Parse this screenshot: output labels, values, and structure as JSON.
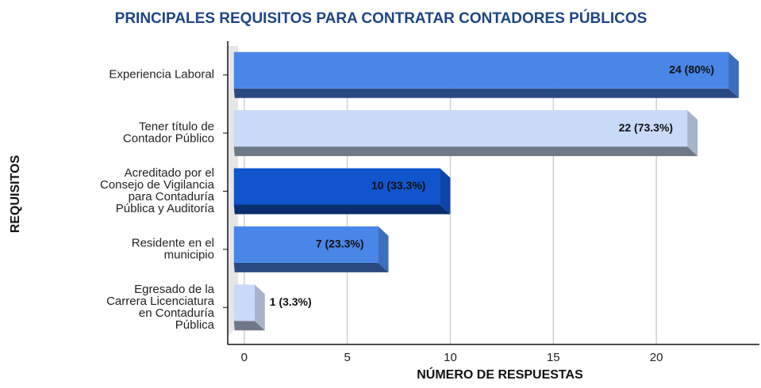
{
  "chart_data": {
    "type": "bar",
    "orientation": "horizontal",
    "title": "PRINCIPALES REQUISITOS PARA CONTRATAR CONTADORES PÚBLICOS",
    "x_label": "NÚMERO DE RESPUESTAS",
    "y_label": "REQUISITOS",
    "categories": [
      "Experiencia Laboral",
      "Tener título de\nContador Público",
      "Acreditado por el\nConsejo de Vigilancia\npara Contaduría\nPública y Auditoría",
      "Residente en el\nmunicipio",
      "Egresado de la\nCarrera Licenciatura\nen Contaduría\nPública"
    ],
    "values": [
      24,
      22,
      10,
      7,
      1
    ],
    "value_labels": [
      "24 (80%)",
      "22 (73.3%)",
      "10 (33.3%)",
      "7 (23.3%)",
      "1 (3.3%)"
    ],
    "colors": [
      "#4a86e8",
      "#c9daf8",
      "#1155cc",
      "#4a86e8",
      "#c9daf8"
    ],
    "xlim": [
      -0.8,
      25
    ],
    "xticks": [
      0,
      5,
      10,
      15,
      20
    ],
    "grid": true
  }
}
